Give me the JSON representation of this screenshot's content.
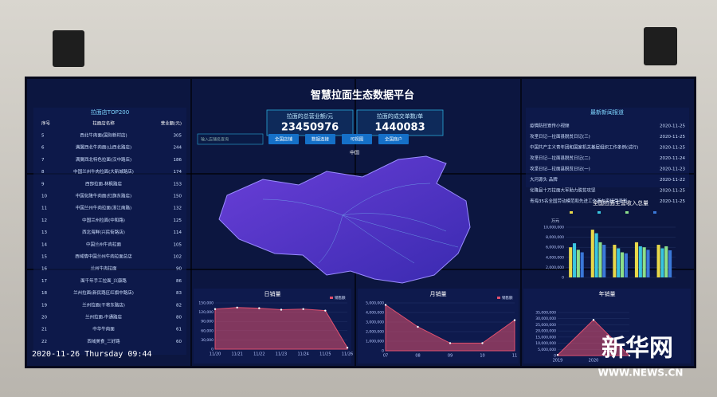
{
  "header": {
    "title": "智慧拉面生态数据平台"
  },
  "stats": [
    {
      "label": "拉面的总营业额/元",
      "value": 23450976
    },
    {
      "label": "拉面的成交单数/单",
      "value": 1440083
    }
  ],
  "search": {
    "placeholder": "输入店铺名查询",
    "buttons": [
      "全国店铺",
      "数据连接",
      "可视图",
      "全国商户"
    ]
  },
  "map": {
    "label": "中国"
  },
  "ranking": {
    "title": "拉面店TOP200",
    "headers": [
      "序号",
      "拉面店名称",
      "营业额(元)"
    ],
    "rows": [
      [
        5,
        "西北牛肉面(国际新村店)",
        305
      ],
      [
        6,
        "满翼西北牛肉面(山西北路店)",
        244
      ],
      [
        7,
        "满翼西北特色拉面(汉中路店)",
        186
      ],
      [
        8,
        "中国兰州牛肉拉面(大新城路店)",
        174
      ],
      [
        9,
        "西部拉面-林枫路店",
        153
      ],
      [
        10,
        "中国化隆牛肉面(红旗东路店)",
        150
      ],
      [
        11,
        "中国兰州牛肉拉面(浙江南路)",
        132
      ],
      [
        12,
        "中国兰州拉面(中和路)",
        125
      ],
      [
        13,
        "西北海鲜(兴民街路店)",
        114
      ],
      [
        14,
        "中国兰州牛肉拉面",
        105
      ],
      [
        15,
        "西域情中国兰州牛肉拉面总店",
        102
      ],
      [
        16,
        "兰州牛肉拉面",
        90
      ],
      [
        17,
        "面千年手工拉面_兴康路",
        86
      ],
      [
        18,
        "兰州拉面(新民路区红旗中路店)",
        83
      ],
      [
        19,
        "兰州拉面(干将东路店)",
        82
      ],
      [
        20,
        "兰州拉面-中通路店",
        80
      ],
      [
        21,
        "中华牛肉面",
        61
      ],
      [
        22,
        "西域美食_三好路",
        60
      ]
    ]
  },
  "timestamp": "2020-11-26 Thursday 09:44",
  "news": {
    "title": "最新新闻报道",
    "items": [
      [
        "疫情防控宣传小视频",
        "2020-11-25"
      ],
      [
        "攻坚日记—拉面县脱贫日记(三)",
        "2020-11-25"
      ],
      [
        "中国共产主义青年团和国家机关基层组织工作条例(试行)",
        "2020-11-25"
      ],
      [
        "攻坚日记—拉面县脱贫日记(二)",
        "2020-11-24"
      ],
      [
        "攻坚日记—拉面县脱贫日记(一)",
        "2020-11-23"
      ],
      [
        "大河源头 品牌",
        "2020-11-22"
      ],
      [
        "化隆县十万拉面大军助力脱贫攻坚",
        "2020-11-25"
      ],
      [
        "青海35名全国劳动模范和先进工作者在京接受表彰",
        "2020-11-25"
      ]
    ]
  },
  "income_chart": {
    "type": "bar",
    "title": "全国拉面主营收入总量",
    "unit": "万元",
    "categories": [
      null,
      null,
      null,
      null,
      null
    ],
    "series": [
      {
        "color": "#e8d84a",
        "values": [
          6000000,
          9500000,
          6500000,
          7000000,
          6500000
        ]
      },
      {
        "color": "#39c6e0",
        "values": [
          6800000,
          8800000,
          5800000,
          6200000,
          5800000
        ]
      },
      {
        "color": "#8de08a",
        "values": [
          5500000,
          7000000,
          5000000,
          6000000,
          6200000
        ]
      },
      {
        "color": "#3a78d8",
        "values": [
          5000000,
          6500000,
          4800000,
          5500000,
          5400000
        ]
      }
    ],
    "ylim": [
      0,
      10000000
    ],
    "yticks": [
      0,
      {
        "value": 2000000,
        "label": "2,000,000"
      },
      {
        "value": 4000000,
        "label": "4,000,000"
      },
      {
        "value": 6000000,
        "label": "6,000,000"
      },
      {
        "value": 8000000,
        "label": "8,000,000"
      },
      {
        "value": 10000000,
        "label": "10,000,000"
      }
    ]
  },
  "daily_sales": {
    "type": "area",
    "title": "日销量",
    "legend": "销售额",
    "color": "#e0506e",
    "categories": [
      "11/20",
      "11/21",
      "11/22",
      "11/23",
      "11/24",
      "11/25",
      "11/26"
    ],
    "values": [
      130000,
      135000,
      133000,
      128000,
      130000,
      125000,
      5000
    ],
    "ylim": [
      0,
      150000
    ],
    "yticks": [
      0,
      {
        "value": 30000,
        "label": "30,000"
      },
      {
        "value": 60000,
        "label": "60,000"
      },
      {
        "value": 90000,
        "label": "90,000"
      },
      {
        "value": 120000,
        "label": "120,000"
      },
      {
        "value": 150000,
        "label": "150,000"
      }
    ]
  },
  "monthly_sales": {
    "type": "area",
    "title": "月销量",
    "legend": "销售额",
    "color": "#e0506e",
    "categories": [
      "07",
      "08",
      "09",
      "10",
      "11"
    ],
    "values": [
      4800000,
      2500000,
      800000,
      800000,
      3200000
    ],
    "ylim": [
      0,
      5000000
    ],
    "yticks": [
      0,
      {
        "value": 1000000,
        "label": "1,000,000"
      },
      {
        "value": 2000000,
        "label": "2,000,000"
      },
      {
        "value": 3000000,
        "label": "3,000,000"
      },
      {
        "value": 4000000,
        "label": "4,000,000"
      },
      {
        "value": 5000000,
        "label": "5,000,000"
      }
    ]
  },
  "annual_sales": {
    "type": "area",
    "title": "年销量",
    "color": "#e0506e",
    "categories": [
      "2019",
      "2020",
      null
    ],
    "values": [
      500000,
      29000000,
      0
    ],
    "ylim": [
      0,
      35000000
    ],
    "yticks": [
      0,
      {
        "value": 5000000,
        "label": "5,000,000"
      },
      {
        "value": 10000000,
        "label": "10,000,000"
      },
      {
        "value": 15000000,
        "label": "15,000,000"
      },
      {
        "value": 20000000,
        "label": "20,000,000"
      },
      {
        "value": 25000000,
        "label": "25,000,000"
      },
      {
        "value": 30000000,
        "label": "30,000,000"
      },
      {
        "value": 35000000,
        "label": "35,000,000"
      }
    ]
  },
  "watermark": {
    "brand": "新华网",
    "url": "WWW.NEWS.CN"
  }
}
